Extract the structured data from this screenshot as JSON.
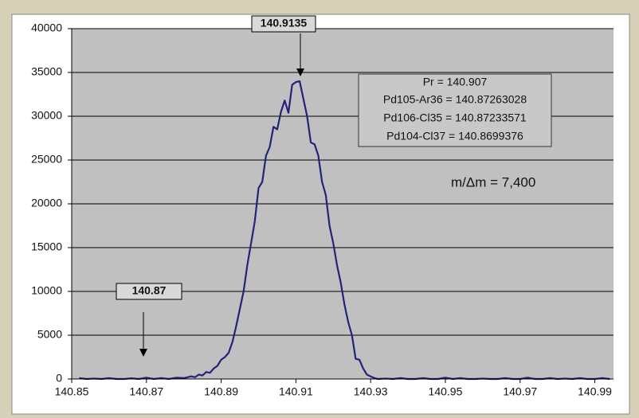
{
  "chart_data": {
    "type": "line",
    "x": [
      140.852,
      140.854,
      140.856,
      140.858,
      140.86,
      140.862,
      140.864,
      140.866,
      140.868,
      140.87,
      140.872,
      140.874,
      140.876,
      140.878,
      140.88,
      140.881,
      140.882,
      140.883,
      140.884,
      140.885,
      140.886,
      140.887,
      140.888,
      140.889,
      140.89,
      140.891,
      140.892,
      140.893,
      140.894,
      140.895,
      140.896,
      140.897,
      140.898,
      140.899,
      140.9,
      140.901,
      140.902,
      140.903,
      140.904,
      140.905,
      140.906,
      140.907,
      140.908,
      140.909,
      140.91,
      140.911,
      140.912,
      140.913,
      140.914,
      140.915,
      140.916,
      140.917,
      140.918,
      140.919,
      140.92,
      140.921,
      140.922,
      140.923,
      140.924,
      140.925,
      140.926,
      140.927,
      140.928,
      140.929,
      140.93,
      140.931,
      140.932,
      140.934,
      140.936,
      140.938,
      140.94,
      140.942,
      140.944,
      140.946,
      140.948,
      140.95,
      140.952,
      140.954,
      140.956,
      140.958,
      140.96,
      140.962,
      140.964,
      140.966,
      140.968,
      140.97,
      140.972,
      140.974,
      140.976,
      140.978,
      140.98,
      140.982,
      140.984,
      140.986,
      140.988,
      140.99,
      140.992,
      140.994
    ],
    "series": [
      {
        "color": "#23237a",
        "values": [
          100,
          0,
          50,
          0,
          100,
          0,
          0,
          80,
          0,
          150,
          0,
          100,
          0,
          150,
          100,
          200,
          300,
          200,
          500,
          400,
          800,
          700,
          1200,
          1500,
          2200,
          2500,
          3000,
          4200,
          6000,
          8000,
          10000,
          13000,
          15500,
          18000,
          21800,
          22500,
          25500,
          26500,
          28800,
          28500,
          30500,
          31800,
          30400,
          33600,
          33900,
          34000,
          32000,
          30000,
          27000,
          26800,
          25500,
          22500,
          21000,
          17500,
          15500,
          13000,
          11000,
          8500,
          6500,
          5000,
          2300,
          2200,
          1200,
          500,
          300,
          100,
          0,
          50,
          0,
          100,
          0,
          0,
          100,
          0,
          0,
          150,
          0,
          100,
          0,
          0,
          50,
          0,
          0,
          100,
          0,
          0,
          150,
          0,
          0,
          100,
          0,
          50,
          0,
          100,
          0,
          0,
          100,
          0
        ]
      }
    ],
    "xlim": [
      140.85,
      140.995
    ],
    "xticks": [
      140.85,
      140.87,
      140.89,
      140.91,
      140.93,
      140.95,
      140.97,
      140.99
    ],
    "ylim": [
      0,
      40000
    ],
    "yticks": [
      0,
      5000,
      10000,
      15000,
      20000,
      25000,
      30000,
      35000,
      40000
    ],
    "grid": true,
    "annotations": [
      "140.9135",
      "140.87",
      "Pr = 140.907",
      "Pd105-Ar36 = 140.87263028",
      "Pd106-Cl35 = 140.87233571",
      "Pd104-Cl37 = 140.8699376",
      "m/Δm = 7,400"
    ]
  }
}
